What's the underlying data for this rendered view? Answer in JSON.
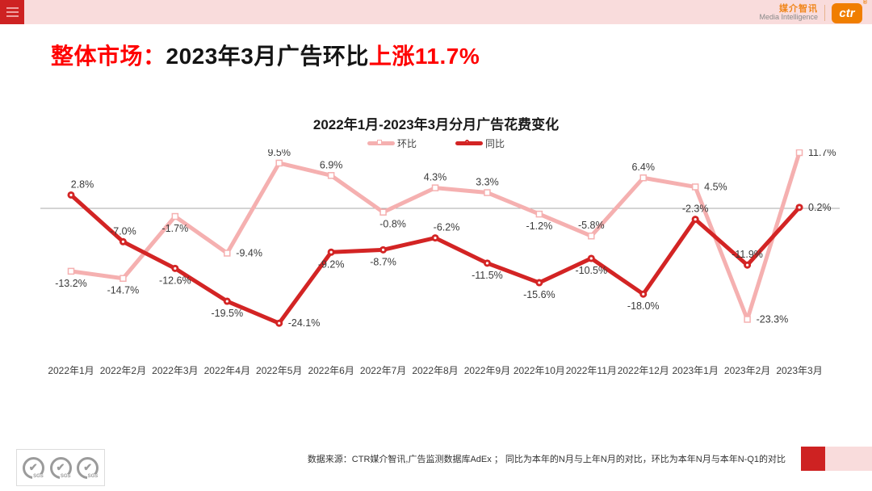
{
  "topbar": {
    "brand_cn": "媒介智讯",
    "brand_en": "Media Intelligence",
    "logo_text": "ctr",
    "logo_reg": "®"
  },
  "page_title": {
    "prefix": "整体市场：",
    "body": "2023年3月广告环比",
    "highlight": "上涨11.7%"
  },
  "chart_data": {
    "type": "line",
    "title": "2022年1月-2023年3月分月广告花费变化",
    "categories": [
      "2022年1月",
      "2022年2月",
      "2022年3月",
      "2022年4月",
      "2022年5月",
      "2022年6月",
      "2022年7月",
      "2022年8月",
      "2022年9月",
      "2022年10月",
      "2022年11月",
      "2022年12月",
      "2023年1月",
      "2023年2月",
      "2023年3月"
    ],
    "series": [
      {
        "name": "环比",
        "color": "#f5b0b0",
        "marker": "square",
        "values": [
          -13.2,
          -14.7,
          -1.7,
          -9.4,
          9.5,
          6.9,
          -0.8,
          4.3,
          3.3,
          -1.2,
          -5.8,
          6.4,
          4.5,
          -23.3,
          11.7
        ],
        "labels": [
          "-13.2%",
          "-14.7%",
          "-1.7%",
          "-9.4%",
          "9.5%",
          "6.9%",
          "-0.8%",
          "4.3%",
          "3.3%",
          "-1.2%",
          "-5.8%",
          "6.4%",
          "4.5%",
          "-23.3%",
          "11.7%"
        ],
        "label_pos": [
          "below",
          "below",
          "below",
          "right",
          "above",
          "above",
          "below-right",
          "above",
          "above",
          "below",
          "above",
          "above",
          "right",
          "right",
          "right"
        ]
      },
      {
        "name": "同比",
        "color": "#d32424",
        "marker": "circle",
        "values": [
          2.8,
          -7.0,
          -12.6,
          -19.5,
          -24.1,
          -9.2,
          -8.7,
          -6.2,
          -11.5,
          -15.6,
          -10.5,
          -18.0,
          -2.3,
          -11.9,
          0.2
        ],
        "labels": [
          "2.8%",
          "-7.0%",
          "-12.6%",
          "-19.5%",
          "-24.1%",
          "-9.2%",
          "-8.7%",
          "-6.2%",
          "-11.5%",
          "-15.6%",
          "-10.5%",
          "-18.0%",
          "-2.3%",
          "-11.9%",
          "0.2%"
        ],
        "label_pos": [
          "above-right",
          "above",
          "below",
          "below",
          "right",
          "below",
          "below",
          "above-right",
          "below",
          "below",
          "below",
          "below",
          "above",
          "above",
          "right"
        ]
      }
    ],
    "ylim": [
      -27,
      14
    ],
    "zero_line": true,
    "grid": false,
    "legend_position": "top-center"
  },
  "footer": {
    "source": "数据来源：CTR媒介智讯,广告监测数据库AdEx ； 同比为本年的N月与上年N月的对比，环比为本年N月与本年N-Q1的对比",
    "sgs_label": "SGS",
    "check_glyph": "✔"
  },
  "colors": {
    "accent_red": "#ce2222",
    "bar_pink": "#f9dcdc",
    "title_red": "#ff0000",
    "logo_orange": "#f07e00",
    "series_mom": "#f5b0b0",
    "series_yoy": "#d32424",
    "zero_line_gray": "#a8a8a8"
  }
}
